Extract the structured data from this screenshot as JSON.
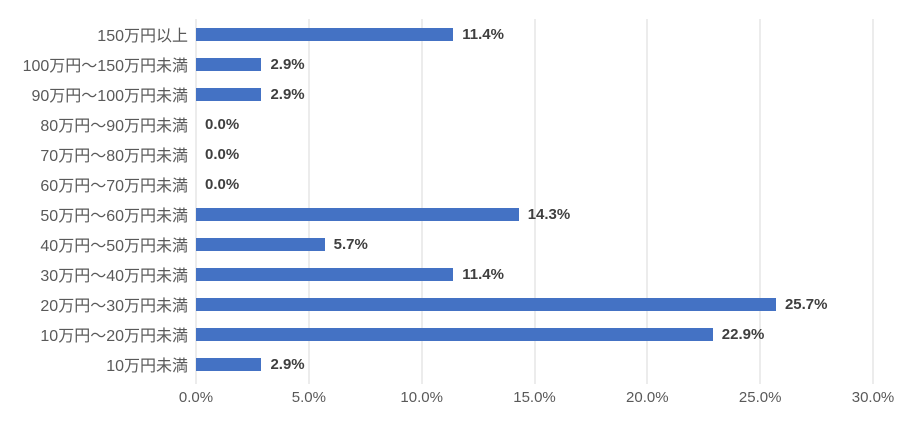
{
  "chart_data": {
    "type": "bar",
    "orientation": "horizontal",
    "title": "",
    "xlabel": "",
    "ylabel": "",
    "grid": true,
    "legend": false,
    "xlim": [
      0,
      30
    ],
    "x_ticks": [
      "0.0%",
      "5.0%",
      "10.0%",
      "15.0%",
      "20.0%",
      "25.0%",
      "30.0%"
    ],
    "categories": [
      "150万円以上",
      "100万円～150万円未満",
      "90万円～100万円未満",
      "80万円～90万円未満",
      "70万円～80万円未満",
      "60万円～70万円未満",
      "50万円～60万円未満",
      "40万円～50万円未満",
      "30万円～40万円未満",
      "20万円～30万円未満",
      "10万円～20万円未満",
      "10万円未満"
    ],
    "values": [
      11.4,
      2.9,
      2.9,
      0.0,
      0.0,
      0.0,
      14.3,
      5.7,
      11.4,
      25.7,
      22.9,
      2.9
    ],
    "data_labels": [
      "11.4%",
      "2.9%",
      "2.9%",
      "0.0%",
      "0.0%",
      "0.0%",
      "14.3%",
      "5.7%",
      "11.4%",
      "25.7%",
      "22.9%",
      "2.9%"
    ],
    "colors": {
      "bar": "#4472C4",
      "gridline": "#D9D9D9",
      "axis_text": "#595959",
      "data_label_text": "#3f3f3f",
      "background": "#ffffff"
    }
  }
}
